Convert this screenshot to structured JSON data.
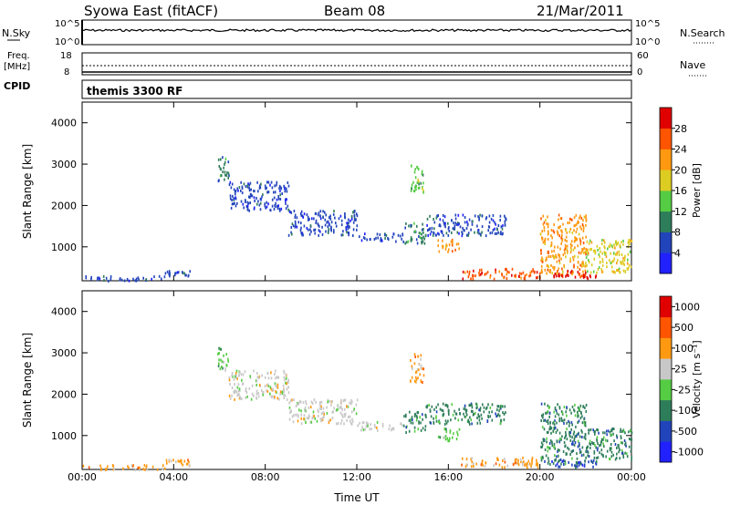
{
  "header": {
    "station": "Syowa East (fitACF)",
    "beam": "Beam 08",
    "date": "21/Mar/2011"
  },
  "top_panels": {
    "nsky_label": "N.Sky",
    "nsky_scale_top": "10^5",
    "nsky_scale_bottom": "10^0",
    "nsearch_label": "N.Search",
    "nsearch_scale_top": "10^5",
    "nsearch_scale_bottom": "10^0",
    "freq_label": "Freq.",
    "freq_unit": "[MHz]",
    "freq_top": "18",
    "freq_bottom": "8",
    "nave_label": "Nave",
    "nave_top": "60",
    "nave_bottom": "0",
    "cpid_label": "CPID",
    "cpid_text": "themis 3300 RF"
  },
  "chart_data": [
    {
      "type": "heatmap",
      "name": "power",
      "ylabel": "Slant Range [km]",
      "xlabel": "Time UT",
      "ylim": [
        180,
        4500
      ],
      "yticks": [
        1000,
        2000,
        3000,
        4000
      ],
      "xticks": [
        "00:00",
        "04:00",
        "08:00",
        "12:00",
        "16:00",
        "20:00",
        "00:00"
      ],
      "colorbar": {
        "label": "Power [dB]",
        "ticks": [
          "4",
          "8",
          "12",
          "16",
          "20",
          "24",
          "28"
        ],
        "colors": [
          "#2121ff",
          "#2244bb",
          "#2e7d5a",
          "#55cc44",
          "#ddcc22",
          "#ff9911",
          "#ff5500",
          "#e00000"
        ]
      },
      "echo_regions": [
        {
          "t": [
            0.0,
            3.6
          ],
          "range": [
            200,
            320
          ],
          "level": 1
        },
        {
          "t": [
            3.6,
            4.7
          ],
          "range": [
            300,
            450
          ],
          "level": 1
        },
        {
          "t": [
            5.9,
            6.4
          ],
          "range": [
            2600,
            3200
          ],
          "level": 2
        },
        {
          "t": [
            6.4,
            9.0
          ],
          "range": [
            1900,
            2600
          ],
          "level": 1
        },
        {
          "t": [
            9.0,
            12.0
          ],
          "range": [
            1300,
            1900
          ],
          "level": 1
        },
        {
          "t": [
            12.0,
            14.0
          ],
          "range": [
            1150,
            1350
          ],
          "level": 1
        },
        {
          "t": [
            14.0,
            15.0
          ],
          "range": [
            1100,
            1600
          ],
          "level": 2
        },
        {
          "t": [
            14.3,
            14.9
          ],
          "range": [
            2300,
            3000
          ],
          "level": 3
        },
        {
          "t": [
            15.0,
            18.5
          ],
          "range": [
            1300,
            1800
          ],
          "level": 1
        },
        {
          "t": [
            15.5,
            16.5
          ],
          "range": [
            900,
            1200
          ],
          "level": 5
        },
        {
          "t": [
            16.5,
            20.0
          ],
          "range": [
            250,
            500
          ],
          "level": 6
        },
        {
          "t": [
            20.0,
            22.0
          ],
          "range": [
            300,
            1800
          ],
          "level": 5
        },
        {
          "t": [
            20.5,
            22.5
          ],
          "range": [
            250,
            450
          ],
          "level": 7
        },
        {
          "t": [
            22.0,
            24.0
          ],
          "range": [
            400,
            1200
          ],
          "level": 4
        }
      ]
    },
    {
      "type": "heatmap",
      "name": "velocity",
      "ylabel": "Slant Range [km]",
      "xlabel": "Time UT",
      "ylim": [
        180,
        4500
      ],
      "yticks": [
        1000,
        2000,
        3000,
        4000
      ],
      "xticks": [
        "00:00",
        "04:00",
        "08:00",
        "12:00",
        "16:00",
        "20:00",
        "00:00"
      ],
      "colorbar": {
        "label": "Velocity [m s⁻¹]",
        "ticks": [
          "1000",
          "500",
          "100",
          "25",
          "-25",
          "-100",
          "-500",
          "-1000"
        ],
        "colors": [
          "#2121ff",
          "#2244bb",
          "#2e7d5a",
          "#55cc44",
          "#c8c8c8",
          "#ff9911",
          "#ff5500",
          "#e00000"
        ]
      },
      "echo_regions": [
        {
          "t": [
            0.0,
            3.6
          ],
          "range": [
            200,
            320
          ],
          "level": 5
        },
        {
          "t": [
            3.6,
            4.7
          ],
          "range": [
            300,
            450
          ],
          "level": 5
        },
        {
          "t": [
            5.9,
            6.4
          ],
          "range": [
            2600,
            3200
          ],
          "level": 3
        },
        {
          "t": [
            6.4,
            9.0
          ],
          "range": [
            1900,
            2600
          ],
          "level": 4
        },
        {
          "t": [
            9.0,
            12.0
          ],
          "range": [
            1300,
            1900
          ],
          "level": 4
        },
        {
          "t": [
            12.0,
            14.0
          ],
          "range": [
            1150,
            1350
          ],
          "level": 4
        },
        {
          "t": [
            14.0,
            15.0
          ],
          "range": [
            1100,
            1600
          ],
          "level": 2
        },
        {
          "t": [
            14.3,
            14.9
          ],
          "range": [
            2300,
            3000
          ],
          "level": 5
        },
        {
          "t": [
            15.0,
            18.5
          ],
          "range": [
            1300,
            1800
          ],
          "level": 2
        },
        {
          "t": [
            15.5,
            16.5
          ],
          "range": [
            900,
            1200
          ],
          "level": 3
        },
        {
          "t": [
            16.5,
            20.0
          ],
          "range": [
            250,
            500
          ],
          "level": 5
        },
        {
          "t": [
            20.0,
            22.0
          ],
          "range": [
            300,
            1800
          ],
          "level": 2
        },
        {
          "t": [
            20.5,
            22.5
          ],
          "range": [
            250,
            450
          ],
          "level": 1
        },
        {
          "t": [
            22.0,
            24.0
          ],
          "range": [
            400,
            1200
          ],
          "level": 2
        }
      ]
    }
  ]
}
